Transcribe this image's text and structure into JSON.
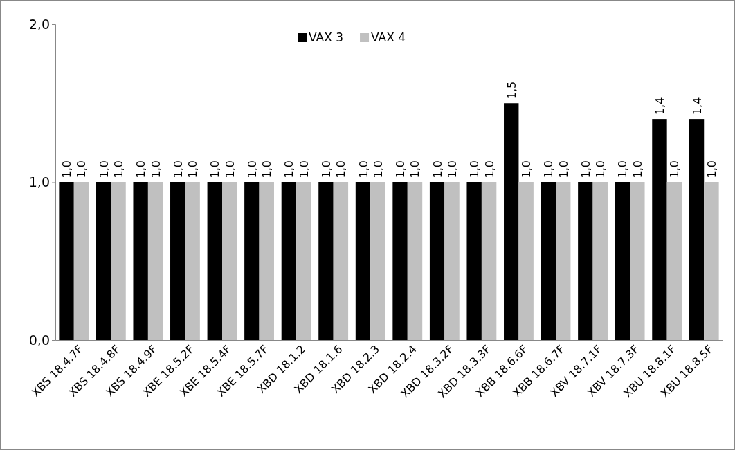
{
  "chart_data": {
    "type": "bar",
    "categories": [
      "XBS 18.4.7F",
      "XBS 18.4.8F",
      "XBS 18.4.9F",
      "XBE 18.5.2F",
      "XBE 18.5.4F",
      "XBE 18.5.7F",
      "XBD 18.1.2",
      "XBD 18.1.6",
      "XBD 18.2.3",
      "XBD 18.2.4",
      "XBD 18.3.2F",
      "XBD 18.3.3F",
      "XBB 18.6.6F",
      "XBB 18.6.7F",
      "XBV 18.7.1F",
      "XBV 18.7.3F",
      "XBU 18.8.1F",
      "XBU 18.8.5F"
    ],
    "series": [
      {
        "name": "VAX 3",
        "color": "#000000",
        "values": [
          1.0,
          1.0,
          1.0,
          1.0,
          1.0,
          1.0,
          1.0,
          1.0,
          1.0,
          1.0,
          1.0,
          1.0,
          1.5,
          1.0,
          1.0,
          1.0,
          1.4,
          1.4
        ],
        "value_labels": [
          "1,0",
          "1,0",
          "1,0",
          "1,0",
          "1,0",
          "1,0",
          "1,0",
          "1,0",
          "1,0",
          "1,0",
          "1,0",
          "1,0",
          "1,5",
          "1,0",
          "1,0",
          "1,0",
          "1,4",
          "1,4"
        ]
      },
      {
        "name": "VAX 4",
        "color": "#c0c0c0",
        "values": [
          1.0,
          1.0,
          1.0,
          1.0,
          1.0,
          1.0,
          1.0,
          1.0,
          1.0,
          1.0,
          1.0,
          1.0,
          1.0,
          1.0,
          1.0,
          1.0,
          1.0,
          1.0
        ],
        "value_labels": [
          "1,0",
          "1,0",
          "1,0",
          "1,0",
          "1,0",
          "1,0",
          "1,0",
          "1,0",
          "1,0",
          "1,0",
          "1,0",
          "1,0",
          "1,0",
          "1,0",
          "1,0",
          "1,0",
          "1,0",
          "1,0"
        ]
      }
    ],
    "ylim": [
      0,
      2
    ],
    "yticks": [
      {
        "value": 0,
        "label": "0,0"
      },
      {
        "value": 1,
        "label": "1,0"
      },
      {
        "value": 2,
        "label": "2,0"
      }
    ],
    "grid": false,
    "legend": "top"
  }
}
